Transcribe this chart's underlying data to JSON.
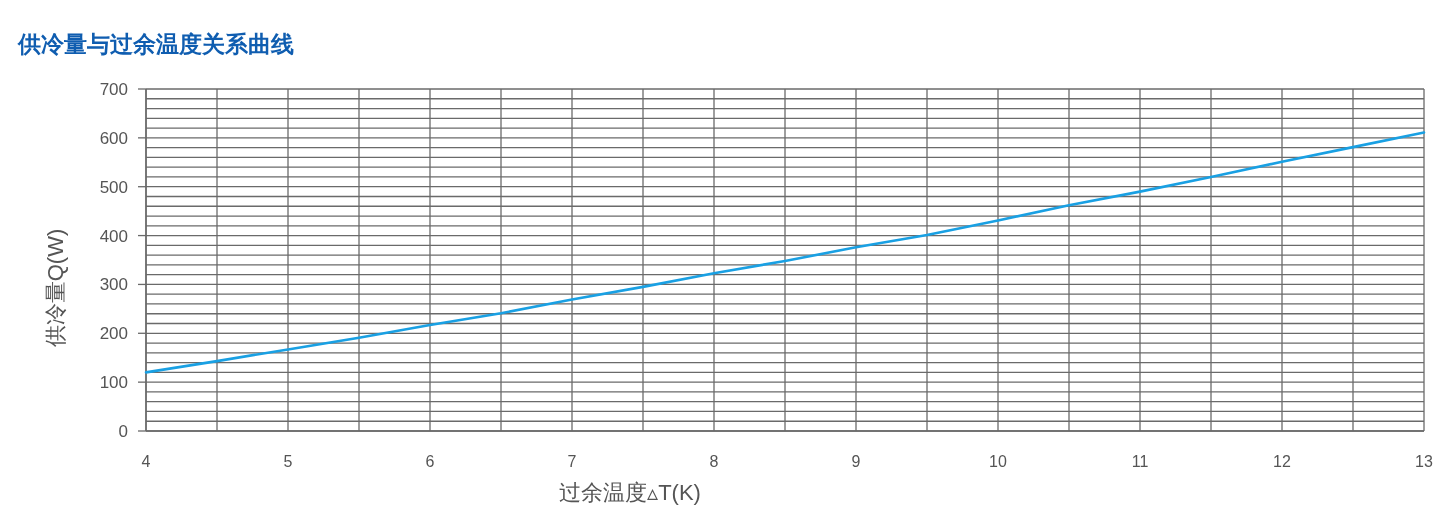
{
  "chart_data": {
    "type": "line",
    "title": "供冷量与过余温度关系曲线",
    "xlabel": "过余温度▵T(K)",
    "ylabel": "供冷量Q(W)",
    "x": [
      4,
      4.5,
      5,
      5.5,
      6,
      6.5,
      7,
      7.5,
      8,
      8.5,
      9,
      9.5,
      10,
      10.5,
      11,
      11.5,
      12,
      12.5,
      13
    ],
    "series": [
      {
        "color": "#19a0e3",
        "values": [
          120,
          143,
          167,
          191,
          217,
          241,
          269,
          295,
          323,
          348,
          376,
          401,
          431,
          462,
          490,
          520,
          551,
          581,
          611
        ]
      }
    ],
    "xlim": [
      4,
      13
    ],
    "xticks": [
      4,
      {
        "value": 4.5,
        "label": null
      },
      5,
      {
        "value": 5.5,
        "label": null
      },
      6,
      {
        "value": 6.5,
        "label": null
      },
      7,
      {
        "value": 7.5,
        "label": null
      },
      8,
      {
        "value": 8.5,
        "label": null
      },
      9,
      {
        "value": 9.5,
        "label": null
      },
      10,
      {
        "value": 10.5,
        "label": null
      },
      11,
      {
        "value": 11.5,
        "label": null
      },
      12,
      {
        "value": 12.5,
        "label": null
      },
      13
    ],
    "ylim": [
      0,
      700
    ],
    "yticks": [
      0,
      {
        "value": 20,
        "label": null
      },
      {
        "value": 40,
        "label": null
      },
      {
        "value": 60,
        "label": null
      },
      {
        "value": 80,
        "label": null
      },
      100,
      {
        "value": 120,
        "label": null
      },
      {
        "value": 140,
        "label": null
      },
      {
        "value": 160,
        "label": null
      },
      {
        "value": 180,
        "label": null
      },
      200,
      {
        "value": 220,
        "label": null
      },
      {
        "value": 240,
        "label": null
      },
      {
        "value": 260,
        "label": null
      },
      {
        "value": 280,
        "label": null
      },
      300,
      {
        "value": 320,
        "label": null
      },
      {
        "value": 340,
        "label": null
      },
      {
        "value": 360,
        "label": null
      },
      {
        "value": 380,
        "label": null
      },
      400,
      {
        "value": 420,
        "label": null
      },
      {
        "value": 440,
        "label": null
      },
      {
        "value": 460,
        "label": null
      },
      {
        "value": 480,
        "label": null
      },
      500,
      {
        "value": 520,
        "label": null
      },
      {
        "value": 540,
        "label": null
      },
      {
        "value": 560,
        "label": null
      },
      {
        "value": 580,
        "label": null
      },
      600,
      {
        "value": 620,
        "label": null
      },
      {
        "value": 640,
        "label": null
      },
      {
        "value": 660,
        "label": null
      },
      {
        "value": 680,
        "label": null
      },
      700
    ],
    "grid": true,
    "line_style": "solid"
  }
}
